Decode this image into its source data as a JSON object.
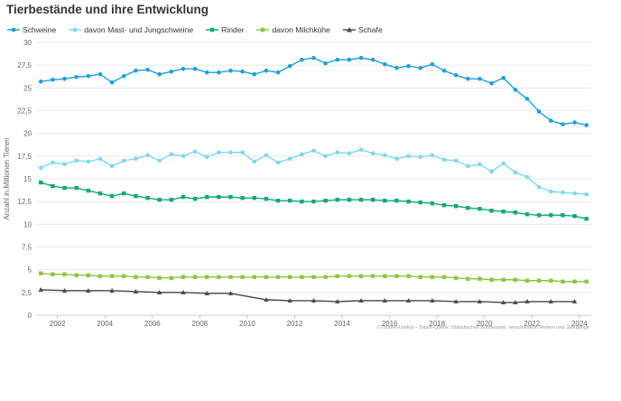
{
  "chart_data": {
    "type": "line",
    "title": "Tierbestände und ihre Entwicklung",
    "ylabel": "Anzahl in Millionen Tieren",
    "xlabel": "",
    "source": "©Thünen-Institut – Daten-Quelle: Statistisches Bundesamt, verschiedene Reihen und Jahrgänge",
    "ylim": [
      0,
      30
    ],
    "xlim": [
      2001.1,
      2024.5
    ],
    "y_ticks": [
      "0",
      "2,5",
      "5",
      "7,5",
      "10",
      "12,5",
      "15",
      "17,5",
      "20",
      "22,5",
      "25",
      "27,5",
      "30"
    ],
    "y_tick_values": [
      0,
      2.5,
      5,
      7.5,
      10,
      12.5,
      15,
      17.5,
      20,
      22.5,
      25,
      27.5,
      30
    ],
    "x_ticks": [
      "2002",
      "2004",
      "2006",
      "2008",
      "2010",
      "2012",
      "2014",
      "2016",
      "2018",
      "2020",
      "2022",
      "2024"
    ],
    "x_tick_values": [
      2002,
      2004,
      2006,
      2008,
      2010,
      2012,
      2014,
      2016,
      2018,
      2020,
      2022,
      2024
    ],
    "grid": "horizontal",
    "legend_position": "top-left",
    "series": [
      {
        "name": "Schweine",
        "color": "#1fa0d8",
        "marker": "circle",
        "x": [
          2001.3,
          2001.8,
          2002.3,
          2002.8,
          2003.3,
          2003.8,
          2004.3,
          2004.8,
          2005.3,
          2005.8,
          2006.3,
          2006.8,
          2007.3,
          2007.8,
          2008.3,
          2008.8,
          2009.3,
          2009.8,
          2010.3,
          2010.8,
          2011.3,
          2011.8,
          2012.3,
          2012.8,
          2013.3,
          2013.8,
          2014.3,
          2014.8,
          2015.3,
          2015.8,
          2016.3,
          2016.8,
          2017.3,
          2017.8,
          2018.3,
          2018.8,
          2019.3,
          2019.8,
          2020.3,
          2020.8,
          2021.3,
          2021.8,
          2022.3,
          2022.8,
          2023.3,
          2023.8,
          2024.3
        ],
        "values": [
          25.7,
          25.9,
          26.0,
          26.2,
          26.3,
          26.5,
          25.6,
          26.3,
          26.9,
          27.0,
          26.5,
          26.8,
          27.1,
          27.1,
          26.7,
          26.7,
          26.9,
          26.8,
          26.5,
          26.9,
          26.7,
          27.4,
          28.1,
          28.3,
          27.7,
          28.1,
          28.1,
          28.3,
          28.1,
          27.6,
          27.2,
          27.4,
          27.2,
          27.6,
          26.9,
          26.4,
          26.0,
          26.0,
          25.5,
          26.1,
          24.8,
          23.8,
          22.4,
          21.4,
          21.0,
          21.2,
          20.9
        ]
      },
      {
        "name": "davon Mast- und Jungschweine",
        "color": "#7dd8ee",
        "marker": "circle",
        "x": [
          2001.3,
          2001.8,
          2002.3,
          2002.8,
          2003.3,
          2003.8,
          2004.3,
          2004.8,
          2005.3,
          2005.8,
          2006.3,
          2006.8,
          2007.3,
          2007.8,
          2008.3,
          2008.8,
          2009.3,
          2009.8,
          2010.3,
          2010.8,
          2011.3,
          2011.8,
          2012.3,
          2012.8,
          2013.3,
          2013.8,
          2014.3,
          2014.8,
          2015.3,
          2015.8,
          2016.3,
          2016.8,
          2017.3,
          2017.8,
          2018.3,
          2018.8,
          2019.3,
          2019.8,
          2020.3,
          2020.8,
          2021.3,
          2021.8,
          2022.3,
          2022.8,
          2023.3,
          2023.8,
          2024.3
        ],
        "values": [
          16.2,
          16.8,
          16.6,
          17.0,
          16.9,
          17.2,
          16.4,
          17.0,
          17.2,
          17.6,
          17.0,
          17.7,
          17.5,
          18.0,
          17.4,
          17.9,
          17.9,
          17.9,
          16.9,
          17.6,
          16.8,
          17.2,
          17.7,
          18.1,
          17.5,
          17.9,
          17.8,
          18.2,
          17.8,
          17.6,
          17.2,
          17.5,
          17.4,
          17.6,
          17.1,
          17.0,
          16.4,
          16.6,
          15.8,
          16.7,
          15.7,
          15.2,
          14.1,
          13.6,
          13.5,
          13.4,
          13.3
        ]
      },
      {
        "name": "Rinder",
        "color": "#0fa87a",
        "marker": "square",
        "x": [
          2001.3,
          2001.8,
          2002.3,
          2002.8,
          2003.3,
          2003.8,
          2004.3,
          2004.8,
          2005.3,
          2005.8,
          2006.3,
          2006.8,
          2007.3,
          2007.8,
          2008.3,
          2008.8,
          2009.3,
          2009.8,
          2010.3,
          2010.8,
          2011.3,
          2011.8,
          2012.3,
          2012.8,
          2013.3,
          2013.8,
          2014.3,
          2014.8,
          2015.3,
          2015.8,
          2016.3,
          2016.8,
          2017.3,
          2017.8,
          2018.3,
          2018.8,
          2019.3,
          2019.8,
          2020.3,
          2020.8,
          2021.3,
          2021.8,
          2022.3,
          2022.8,
          2023.3,
          2023.8,
          2024.3
        ],
        "values": [
          14.6,
          14.2,
          14.0,
          14.0,
          13.7,
          13.4,
          13.1,
          13.4,
          13.1,
          12.9,
          12.7,
          12.7,
          13.0,
          12.8,
          13.0,
          13.0,
          13.0,
          12.9,
          12.9,
          12.8,
          12.6,
          12.6,
          12.5,
          12.5,
          12.6,
          12.7,
          12.7,
          12.7,
          12.7,
          12.6,
          12.6,
          12.5,
          12.4,
          12.3,
          12.1,
          12.0,
          11.8,
          11.7,
          11.5,
          11.4,
          11.3,
          11.1,
          11.0,
          11.0,
          11.0,
          10.9,
          10.6
        ]
      },
      {
        "name": "davon Milchkühe",
        "color": "#8cc63f",
        "marker": "square",
        "x": [
          2001.3,
          2001.8,
          2002.3,
          2002.8,
          2003.3,
          2003.8,
          2004.3,
          2004.8,
          2005.3,
          2005.8,
          2006.3,
          2006.8,
          2007.3,
          2007.8,
          2008.3,
          2008.8,
          2009.3,
          2009.8,
          2010.3,
          2010.8,
          2011.3,
          2011.8,
          2012.3,
          2012.8,
          2013.3,
          2013.8,
          2014.3,
          2014.8,
          2015.3,
          2015.8,
          2016.3,
          2016.8,
          2017.3,
          2017.8,
          2018.3,
          2018.8,
          2019.3,
          2019.8,
          2020.3,
          2020.8,
          2021.3,
          2021.8,
          2022.3,
          2022.8,
          2023.3,
          2023.8,
          2024.3
        ],
        "values": [
          4.6,
          4.5,
          4.5,
          4.4,
          4.4,
          4.3,
          4.3,
          4.3,
          4.2,
          4.2,
          4.1,
          4.1,
          4.2,
          4.2,
          4.2,
          4.2,
          4.2,
          4.2,
          4.2,
          4.2,
          4.2,
          4.2,
          4.2,
          4.2,
          4.2,
          4.3,
          4.3,
          4.3,
          4.3,
          4.3,
          4.3,
          4.3,
          4.2,
          4.2,
          4.2,
          4.1,
          4.0,
          4.0,
          3.9,
          3.9,
          3.9,
          3.8,
          3.8,
          3.8,
          3.7,
          3.7,
          3.7
        ]
      },
      {
        "name": "Schafe",
        "color": "#3d4a50",
        "marker": "triangle",
        "x": [
          2001.3,
          2002.3,
          2003.3,
          2004.3,
          2005.3,
          2006.3,
          2007.3,
          2008.3,
          2009.3,
          2010.8,
          2011.8,
          2012.8,
          2013.8,
          2014.8,
          2015.8,
          2016.8,
          2017.8,
          2018.8,
          2019.8,
          2020.8,
          2021.3,
          2021.8,
          2022.8,
          2023.8
        ],
        "values": [
          2.8,
          2.7,
          2.7,
          2.7,
          2.6,
          2.5,
          2.5,
          2.4,
          2.4,
          1.7,
          1.6,
          1.6,
          1.5,
          1.6,
          1.6,
          1.6,
          1.6,
          1.5,
          1.5,
          1.4,
          1.4,
          1.5,
          1.5,
          1.5
        ]
      }
    ]
  }
}
